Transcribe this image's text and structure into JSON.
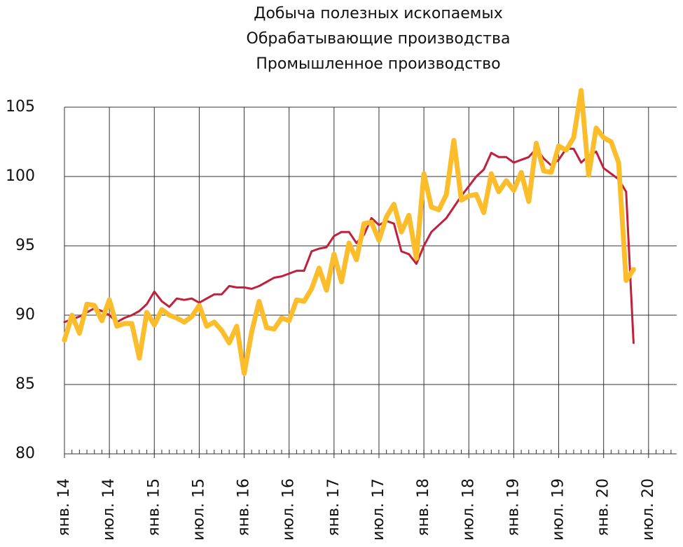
{
  "chart_data": {
    "type": "line",
    "title": [
      "Добыча полезных ископаемых",
      "Обрабатывающие производства",
      "Промышленное производство"
    ],
    "x": [
      "2014-01",
      "2014-02",
      "2014-03",
      "2014-04",
      "2014-05",
      "2014-06",
      "2014-07",
      "2014-08",
      "2014-09",
      "2014-10",
      "2014-11",
      "2014-12",
      "2015-01",
      "2015-02",
      "2015-03",
      "2015-04",
      "2015-05",
      "2015-06",
      "2015-07",
      "2015-08",
      "2015-09",
      "2015-10",
      "2015-11",
      "2015-12",
      "2016-01",
      "2016-02",
      "2016-03",
      "2016-04",
      "2016-05",
      "2016-06",
      "2016-07",
      "2016-08",
      "2016-09",
      "2016-10",
      "2016-11",
      "2016-12",
      "2017-01",
      "2017-02",
      "2017-03",
      "2017-04",
      "2017-05",
      "2017-06",
      "2017-07",
      "2017-08",
      "2017-09",
      "2017-10",
      "2017-11",
      "2017-12",
      "2018-01",
      "2018-02",
      "2018-03",
      "2018-04",
      "2018-05",
      "2018-06",
      "2018-07",
      "2018-08",
      "2018-09",
      "2018-10",
      "2018-11",
      "2018-12",
      "2019-01",
      "2019-02",
      "2019-03",
      "2019-04",
      "2019-05",
      "2019-06",
      "2019-07",
      "2019-08",
      "2019-09",
      "2019-10",
      "2019-11",
      "2019-12",
      "2020-01",
      "2020-02",
      "2020-03",
      "2020-04",
      "2020-05"
    ],
    "series": [
      {
        "color": "#c0203a",
        "width": 3,
        "values": [
          89.5,
          89.7,
          89.9,
          90.2,
          90.5,
          90.3,
          90.0,
          89.5,
          89.8,
          90.0,
          90.3,
          90.8,
          91.7,
          91.0,
          90.6,
          91.2,
          91.1,
          91.2,
          90.9,
          91.2,
          91.5,
          91.5,
          92.1,
          92.0,
          92.0,
          91.9,
          92.1,
          92.4,
          92.7,
          92.8,
          93.0,
          93.2,
          93.2,
          94.6,
          94.8,
          94.9,
          95.7,
          96.0,
          96.0,
          95.2,
          95.8,
          97.0,
          96.5,
          96.8,
          96.6,
          94.6,
          94.4,
          93.7,
          95.0,
          96.0,
          96.5,
          97.0,
          97.8,
          98.6,
          99.3,
          100.0,
          100.5,
          101.7,
          101.4,
          101.4,
          101.0,
          101.2,
          101.4,
          102.0,
          101.3,
          100.8,
          101.2,
          102.0,
          102.0,
          101.0,
          101.5,
          101.8,
          100.6,
          100.2,
          99.8,
          98.9,
          88.0
        ]
      },
      {
        "color": "#fbbd2c",
        "width": 7,
        "values": [
          88.2,
          90.0,
          88.7,
          90.8,
          90.7,
          89.6,
          91.1,
          89.2,
          89.4,
          89.4,
          86.9,
          90.2,
          89.3,
          90.4,
          90.0,
          89.8,
          89.5,
          89.9,
          90.7,
          89.2,
          89.5,
          88.9,
          88.0,
          89.2,
          85.8,
          88.8,
          91.0,
          89.1,
          89.0,
          89.8,
          89.6,
          91.1,
          91.0,
          91.9,
          93.4,
          91.8,
          94.4,
          92.4,
          95.2,
          94.0,
          96.6,
          96.7,
          95.4,
          97.1,
          98.0,
          96.0,
          97.2,
          94.1,
          100.2,
          97.8,
          97.6,
          98.7,
          102.6,
          98.3,
          98.6,
          98.7,
          97.4,
          100.2,
          98.9,
          99.7,
          99.0,
          100.3,
          98.2,
          102.4,
          100.4,
          100.3,
          102.2,
          101.9,
          102.8,
          106.2,
          100.1,
          103.5,
          102.8,
          102.5,
          101.0,
          92.5,
          93.3
        ]
      }
    ],
    "xlim": [
      "2014-01",
      "2020-10"
    ],
    "xticks": [
      {
        "value": "2014-01",
        "label": "янв. 14"
      },
      {
        "value": "2014-07",
        "label": "июл. 14"
      },
      {
        "value": "2015-01",
        "label": "янв. 15"
      },
      {
        "value": "2015-07",
        "label": "июл. 15"
      },
      {
        "value": "2016-01",
        "label": "янв. 16"
      },
      {
        "value": "2016-07",
        "label": "июл. 16"
      },
      {
        "value": "2017-01",
        "label": "янв. 17"
      },
      {
        "value": "2017-07",
        "label": "июл. 17"
      },
      {
        "value": "2018-01",
        "label": "янв. 18"
      },
      {
        "value": "2018-07",
        "label": "июл. 18"
      },
      {
        "value": "2019-01",
        "label": "янв. 19"
      },
      {
        "value": "2019-07",
        "label": "июл. 19"
      },
      {
        "value": "2020-01",
        "label": "янв. 20"
      },
      {
        "value": "2020-07",
        "label": "июл. 20"
      }
    ],
    "ylim": [
      80,
      105
    ],
    "yticks": [
      80,
      85,
      90,
      95,
      100,
      105
    ],
    "grid": true
  }
}
